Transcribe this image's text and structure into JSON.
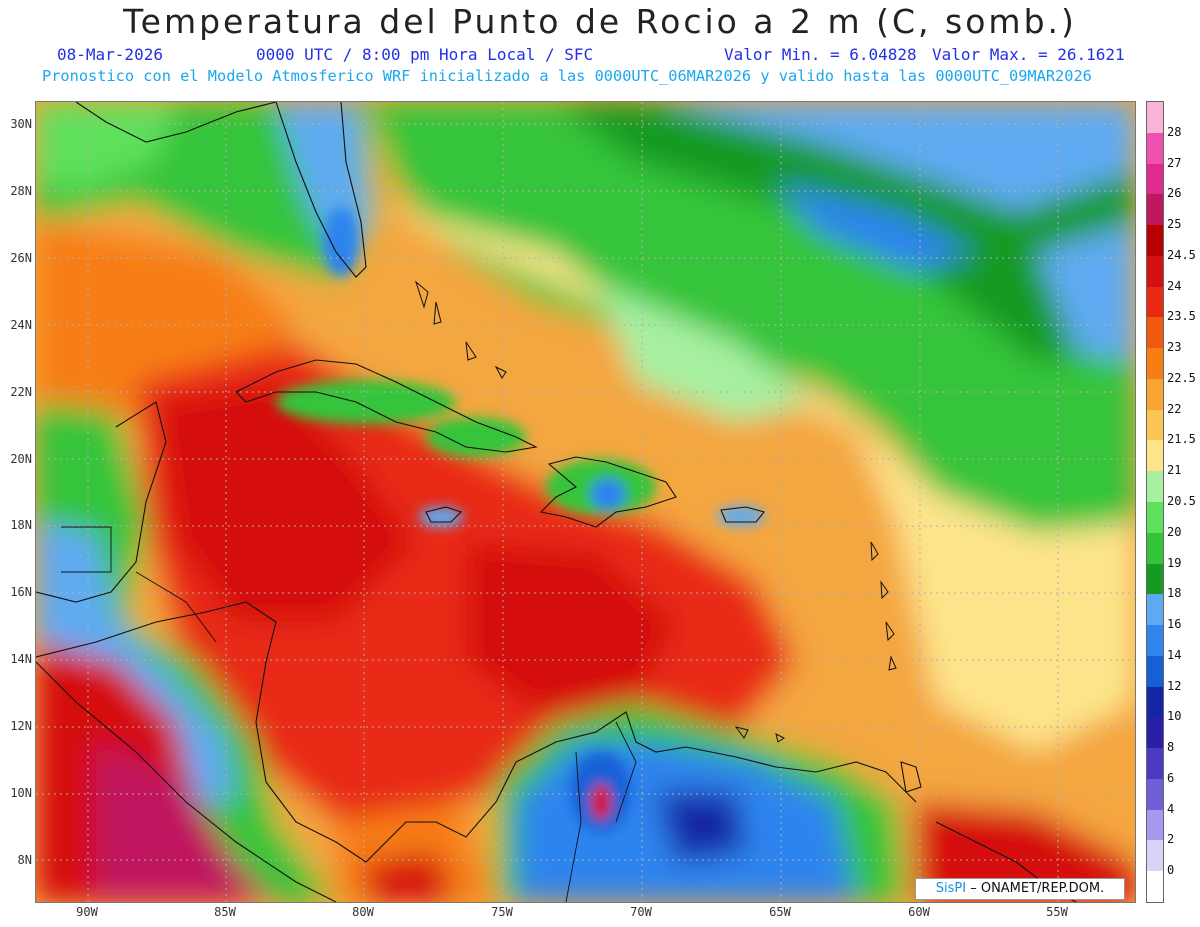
{
  "title": "Temperatura del Punto de Rocio a 2 m (C, somb.)",
  "date": "08-Mar-2026",
  "time": "0000 UTC / 8:00 pm Hora Local / SFC",
  "min_label": "Valor Min. = 6.04828",
  "max_label": "Valor Max. = 26.1621",
  "forecast": "Pronostico con el Modelo Atmosferico WRF inicializado a las 0000UTC_06MAR2026 y valido hasta las  0000UTC_09MAR2026",
  "lat_labels": [
    "30N",
    "28N",
    "26N",
    "24N",
    "22N",
    "20N",
    "18N",
    "16N",
    "14N",
    "12N",
    "10N",
    "8N"
  ],
  "lon_labels": [
    "90W",
    "85W",
    "80W",
    "75W",
    "70W",
    "65W",
    "60W",
    "55W"
  ],
  "colorbar": {
    "levels": [
      "28",
      "27",
      "26",
      "25",
      "24.5",
      "24",
      "23.5",
      "23",
      "22.5",
      "22",
      "21.5",
      "21",
      "20.5",
      "20",
      "19",
      "18",
      "16",
      "14",
      "12",
      "10",
      "8",
      "6",
      "4",
      "2",
      "0"
    ],
    "colors": [
      "#f7b4d6",
      "#f050b0",
      "#e02a90",
      "#c0185e",
      "#b80000",
      "#d51010",
      "#e82a12",
      "#f05a10",
      "#f77e12",
      "#f9a532",
      "#fbc552",
      "#fde48a",
      "#a6f0a0",
      "#5fe05c",
      "#34c43a",
      "#169a20",
      "#5eaaf2",
      "#2f84ee",
      "#1660d6",
      "#1226a6",
      "#2b1ea8",
      "#4a3ac4",
      "#7060d8",
      "#a69af0",
      "#d8d4f8",
      "#ffffff"
    ]
  },
  "credit": {
    "brand": "SisPI",
    "org": "– ONAMET/REP.DOM."
  }
}
